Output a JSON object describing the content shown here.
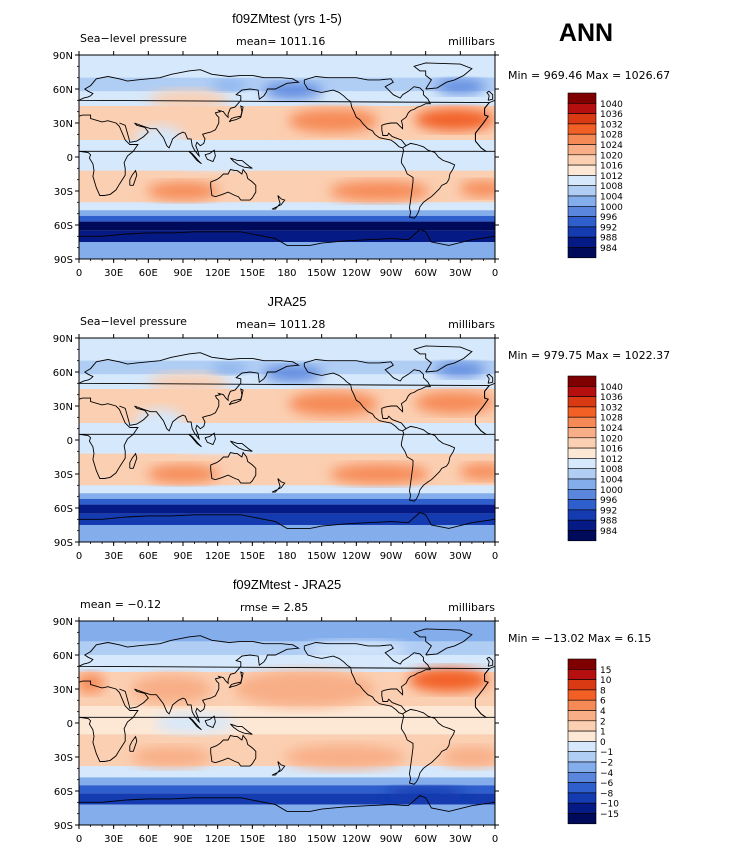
{
  "season": "ANN",
  "lat_labels": [
    "90N",
    "60N",
    "30N",
    "0",
    "30S",
    "60S",
    "90S"
  ],
  "lon_labels": [
    "0",
    "30E",
    "60E",
    "90E",
    "120E",
    "150E",
    "180",
    "150W",
    "120W",
    "90W",
    "60W",
    "30W",
    "0"
  ],
  "panels": [
    {
      "title": "f09ZMtest (yrs 1-5)",
      "left_text": "Sea−level pressure",
      "center_text": "mean=  1011.16",
      "units": "millibars",
      "minmax": "Min = 969.46 Max = 1026.67",
      "levels": [
        "1040",
        "1036",
        "1032",
        "1028",
        "1024",
        "1020",
        "1016",
        "1012",
        "1008",
        "1004",
        "1000",
        "996",
        "992",
        "988",
        "984"
      ]
    },
    {
      "title": "JRA25",
      "left_text": "Sea−level pressure",
      "center_text": "mean=  1011.28",
      "units": "millibars",
      "minmax": "Min = 979.75 Max = 1022.37",
      "levels": [
        "1040",
        "1036",
        "1032",
        "1028",
        "1024",
        "1020",
        "1016",
        "1012",
        "1008",
        "1004",
        "1000",
        "996",
        "992",
        "988",
        "984"
      ]
    },
    {
      "title": "f09ZMtest - JRA25",
      "left_text": "mean =   −0.12",
      "center_text": "rmse =    2.85",
      "units": "millibars",
      "minmax": "Min = −13.02 Max =    6.15",
      "levels": [
        "15",
        "10",
        "8",
        "6",
        "4",
        "2",
        "1",
        "0",
        "−1",
        "−2",
        "−4",
        "−6",
        "−8",
        "−10",
        "−15"
      ]
    }
  ],
  "colors": {
    "palette": [
      "#7f0000",
      "#b50f0f",
      "#d93a14",
      "#f26026",
      "#f68a56",
      "#f8ae86",
      "#fbcfb2",
      "#fde8d6",
      "#d6e8fb",
      "#b0cdf4",
      "#84adec",
      "#5a86de",
      "#2f5fcc",
      "#143bb0",
      "#061a85",
      "#000a5a"
    ],
    "diff_palette": [
      "#7f0000",
      "#b50f0f",
      "#d93a14",
      "#f26026",
      "#f68a56",
      "#f8ae86",
      "#fbcfb2",
      "#fde8d6",
      "#d6e8fb",
      "#b0cdf4",
      "#84adec",
      "#5a86de",
      "#2f5fcc",
      "#143bb0",
      "#061a85",
      "#000a5a"
    ]
  }
}
